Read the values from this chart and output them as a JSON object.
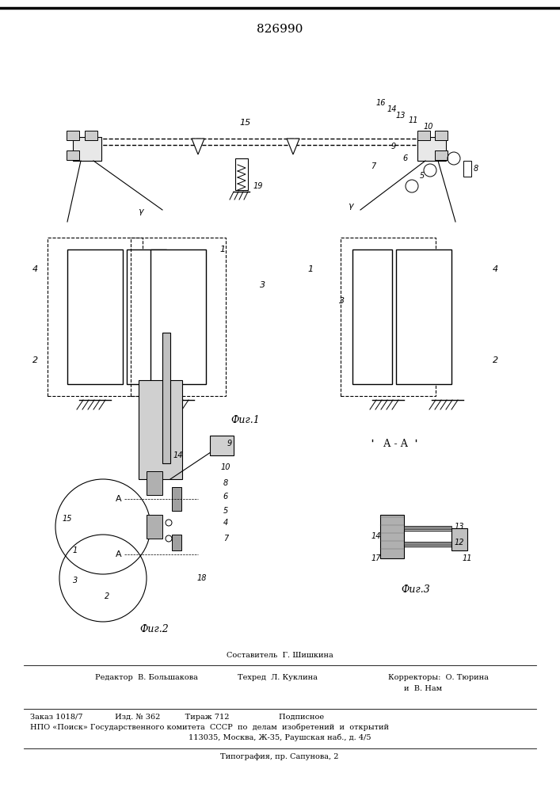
{
  "title": "826990",
  "fig1_caption": "Фиг.1",
  "fig2_caption": "Фиг.2",
  "fig3_caption": "Фиг.3",
  "fig3_label": "А - А",
  "footer_line1": "Составитель  Г. Шишкина",
  "footer_line2_left": "Редактор  В. Большакова",
  "footer_line2_mid": "Техред  Л. Куклина",
  "footer_line2_right": "Корректоры:  О. Тюрина",
  "footer_line2_right2": "и  В. Нам",
  "footer_line3": "Заказ 1018/7             Изд. № 362          Тираж 712                    Подписное",
  "footer_line4": "НПО «Поиск» Государственного комитета  СССР  по  делам  изобретений  и  открытий",
  "footer_line5": "113035, Москва, Ж-35, Раушская наб., д. 4/5",
  "footer_line6": "Типография, пр. Сапунова, 2",
  "bg_color": "#ffffff",
  "line_color": "#000000",
  "border_color": "#000000"
}
